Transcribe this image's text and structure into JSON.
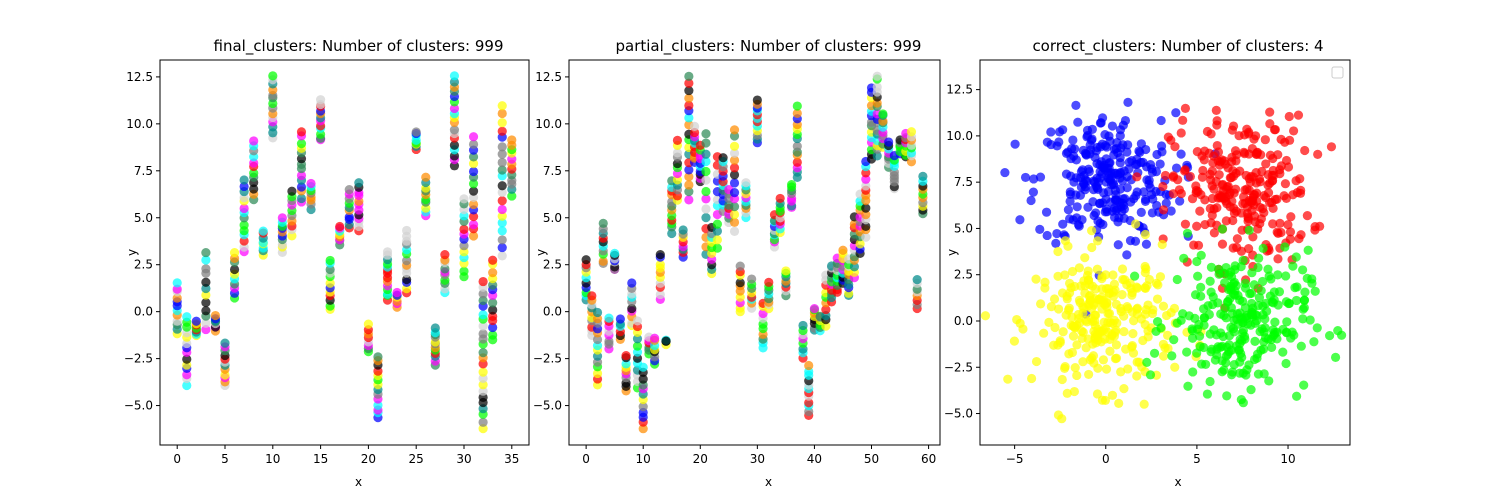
{
  "figure": {
    "background": "#ffffff"
  },
  "chart_data": [
    {
      "type": "scatter",
      "title": "final_clusters: Number of clusters: 999",
      "xlabel": "x",
      "ylabel": "y",
      "xlim": [
        -1.8,
        36.8
      ],
      "ylim": [
        -7.1,
        13.4
      ],
      "xticks": [
        0,
        5,
        10,
        15,
        20,
        25,
        30,
        35
      ],
      "yticks": [
        -5.0,
        -2.5,
        0.0,
        2.5,
        5.0,
        7.5,
        10.0,
        12.5
      ],
      "ytick_labels": [
        "−5.0",
        "−2.5",
        "0.0",
        "2.5",
        "5.0",
        "7.5",
        "10.0",
        "12.5"
      ],
      "grid": false,
      "palette": [
        "#ff0000",
        "#00ff00",
        "#0000ff",
        "#ffff00",
        "#00ffff",
        "#ff00ff",
        "#000000",
        "#808080",
        "#2e8b57",
        "#ff8c00",
        "#d3d3d3",
        "#008b8b"
      ],
      "point_columns": [
        {
          "x": 0,
          "y_min": -1.2,
          "y_max": 1.5,
          "n": 12
        },
        {
          "x": 1,
          "y_min": -3.9,
          "y_max": -0.3,
          "n": 14
        },
        {
          "x": 2,
          "y_min": -1.3,
          "y_max": -0.5,
          "n": 8
        },
        {
          "x": 3,
          "y_min": -1.0,
          "y_max": 3.1,
          "n": 12
        },
        {
          "x": 4,
          "y_min": -1.0,
          "y_max": -0.2,
          "n": 8
        },
        {
          "x": 5,
          "y_min": -3.9,
          "y_max": -1.7,
          "n": 12
        },
        {
          "x": 6,
          "y_min": 0.7,
          "y_max": 3.1,
          "n": 10
        },
        {
          "x": 7,
          "y_min": 3.2,
          "y_max": 7.0,
          "n": 14
        },
        {
          "x": 8,
          "y_min": 6.0,
          "y_max": 9.1,
          "n": 12
        },
        {
          "x": 9,
          "y_min": 3.0,
          "y_max": 4.3,
          "n": 8
        },
        {
          "x": 10,
          "y_min": 9.3,
          "y_max": 12.6,
          "n": 14
        },
        {
          "x": 11,
          "y_min": 3.2,
          "y_max": 5.0,
          "n": 10
        },
        {
          "x": 12,
          "y_min": 4.1,
          "y_max": 6.4,
          "n": 10
        },
        {
          "x": 13,
          "y_min": 5.8,
          "y_max": 9.6,
          "n": 14
        },
        {
          "x": 14,
          "y_min": 5.5,
          "y_max": 6.8,
          "n": 8
        },
        {
          "x": 15,
          "y_min": 9.1,
          "y_max": 11.3,
          "n": 12
        },
        {
          "x": 16,
          "y_min": 0.1,
          "y_max": 2.8,
          "n": 12
        },
        {
          "x": 17,
          "y_min": 3.6,
          "y_max": 4.6,
          "n": 8
        },
        {
          "x": 18,
          "y_min": 4.4,
          "y_max": 6.5,
          "n": 10
        },
        {
          "x": 19,
          "y_min": 4.3,
          "y_max": 6.8,
          "n": 12
        },
        {
          "x": 20,
          "y_min": -2.2,
          "y_max": -0.7,
          "n": 8
        },
        {
          "x": 21,
          "y_min": -5.7,
          "y_max": -2.4,
          "n": 14
        },
        {
          "x": 22,
          "y_min": 0.6,
          "y_max": 3.2,
          "n": 14
        },
        {
          "x": 23,
          "y_min": 0.3,
          "y_max": 1.0,
          "n": 6
        },
        {
          "x": 24,
          "y_min": 1.0,
          "y_max": 4.3,
          "n": 14
        },
        {
          "x": 25,
          "y_min": 8.6,
          "y_max": 9.6,
          "n": 8
        },
        {
          "x": 26,
          "y_min": 5.1,
          "y_max": 7.1,
          "n": 10
        },
        {
          "x": 27,
          "y_min": -2.8,
          "y_max": -0.9,
          "n": 12
        },
        {
          "x": 28,
          "y_min": 1.0,
          "y_max": 3.0,
          "n": 10
        },
        {
          "x": 29,
          "y_min": 7.8,
          "y_max": 12.5,
          "n": 18
        },
        {
          "x": 30,
          "y_min": 1.9,
          "y_max": 6.0,
          "n": 14
        },
        {
          "x": 31,
          "y_min": 4.0,
          "y_max": 9.3,
          "n": 16
        },
        {
          "x": 32,
          "y_min": -6.2,
          "y_max": 1.6,
          "n": 24
        },
        {
          "x": 33,
          "y_min": -1.5,
          "y_max": 2.8,
          "n": 14
        },
        {
          "x": 34,
          "y_min": 3.0,
          "y_max": 10.9,
          "n": 20
        },
        {
          "x": 35,
          "y_min": 6.2,
          "y_max": 9.2,
          "n": 12
        }
      ]
    },
    {
      "type": "scatter",
      "title": "partial_clusters: Number of clusters: 999",
      "xlabel": "x",
      "ylabel": "y",
      "xlim": [
        -3,
        62
      ],
      "ylim": [
        -7.1,
        13.4
      ],
      "xticks": [
        0,
        10,
        20,
        30,
        40,
        50,
        60
      ],
      "yticks": [
        -5.0,
        -2.5,
        0.0,
        2.5,
        5.0,
        7.5,
        10.0,
        12.5
      ],
      "ytick_labels": [
        "−5.0",
        "−2.5",
        "0.0",
        "2.5",
        "5.0",
        "7.5",
        "10.0",
        "12.5"
      ],
      "grid": false,
      "palette": [
        "#ff0000",
        "#00ff00",
        "#0000ff",
        "#ffff00",
        "#00ffff",
        "#ff00ff",
        "#000000",
        "#808080",
        "#2e8b57",
        "#ff8c00",
        "#d3d3d3",
        "#008b8b"
      ],
      "point_columns": [
        {
          "x": 0,
          "y_min": 0.6,
          "y_max": 2.8,
          "n": 10
        },
        {
          "x": 1,
          "y_min": -1.2,
          "y_max": 0.8,
          "n": 10
        },
        {
          "x": 2,
          "y_min": -3.9,
          "y_max": 0.0,
          "n": 14
        },
        {
          "x": 3,
          "y_min": 2.5,
          "y_max": 4.7,
          "n": 10
        },
        {
          "x": 4,
          "y_min": -2.0,
          "y_max": -0.3,
          "n": 8
        },
        {
          "x": 5,
          "y_min": 2.2,
          "y_max": 3.1,
          "n": 8
        },
        {
          "x": 6,
          "y_min": -1.5,
          "y_max": -0.4,
          "n": 6
        },
        {
          "x": 7,
          "y_min": -4.2,
          "y_max": -2.3,
          "n": 10
        },
        {
          "x": 8,
          "y_min": -0.8,
          "y_max": 1.5,
          "n": 10
        },
        {
          "x": 9,
          "y_min": -4.0,
          "y_max": -0.5,
          "n": 12
        },
        {
          "x": 10,
          "y_min": -6.2,
          "y_max": -3.0,
          "n": 12
        },
        {
          "x": 11,
          "y_min": -2.2,
          "y_max": -1.4,
          "n": 6
        },
        {
          "x": 12,
          "y_min": -2.8,
          "y_max": -1.4,
          "n": 8
        },
        {
          "x": 13,
          "y_min": 0.7,
          "y_max": 3.1,
          "n": 10
        },
        {
          "x": 14,
          "y_min": -1.7,
          "y_max": -1.5,
          "n": 4
        },
        {
          "x": 15,
          "y_min": 4.2,
          "y_max": 6.9,
          "n": 12
        },
        {
          "x": 16,
          "y_min": 5.9,
          "y_max": 9.1,
          "n": 12
        },
        {
          "x": 17,
          "y_min": 2.9,
          "y_max": 4.3,
          "n": 8
        },
        {
          "x": 18,
          "y_min": 6.0,
          "y_max": 12.6,
          "n": 18
        },
        {
          "x": 19,
          "y_min": 7.9,
          "y_max": 9.8,
          "n": 10
        },
        {
          "x": 20,
          "y_min": 6.9,
          "y_max": 8.8,
          "n": 10
        },
        {
          "x": 21,
          "y_min": 3.0,
          "y_max": 9.4,
          "n": 14
        },
        {
          "x": 22,
          "y_min": 2.0,
          "y_max": 4.5,
          "n": 10
        },
        {
          "x": 23,
          "y_min": 3.4,
          "y_max": 8.2,
          "n": 12
        },
        {
          "x": 24,
          "y_min": 5.4,
          "y_max": 8.2,
          "n": 12
        },
        {
          "x": 25,
          "y_min": 4.7,
          "y_max": 6.5,
          "n": 8
        },
        {
          "x": 26,
          "y_min": 4.3,
          "y_max": 9.7,
          "n": 14
        },
        {
          "x": 27,
          "y_min": 0.0,
          "y_max": 2.4,
          "n": 10
        },
        {
          "x": 28,
          "y_min": 5.0,
          "y_max": 6.9,
          "n": 10
        },
        {
          "x": 29,
          "y_min": 0.2,
          "y_max": 1.7,
          "n": 8
        },
        {
          "x": 30,
          "y_min": 9.0,
          "y_max": 11.3,
          "n": 12
        },
        {
          "x": 31,
          "y_min": -2.0,
          "y_max": 0.5,
          "n": 10
        },
        {
          "x": 32,
          "y_min": 0.1,
          "y_max": 1.6,
          "n": 8
        },
        {
          "x": 33,
          "y_min": 3.5,
          "y_max": 5.1,
          "n": 10
        },
        {
          "x": 34,
          "y_min": 4.2,
          "y_max": 6.0,
          "n": 10
        },
        {
          "x": 35,
          "y_min": 0.9,
          "y_max": 2.2,
          "n": 8
        },
        {
          "x": 36,
          "y_min": 5.5,
          "y_max": 6.8,
          "n": 8
        },
        {
          "x": 37,
          "y_min": 7.1,
          "y_max": 10.9,
          "n": 14
        },
        {
          "x": 38,
          "y_min": -2.5,
          "y_max": -0.7,
          "n": 8
        },
        {
          "x": 39,
          "y_min": -5.5,
          "y_max": -2.9,
          "n": 12
        },
        {
          "x": 40,
          "y_min": -1.0,
          "y_max": 0.2,
          "n": 8
        },
        {
          "x": 41,
          "y_min": -1.0,
          "y_max": -0.2,
          "n": 6
        },
        {
          "x": 42,
          "y_min": -0.8,
          "y_max": 2.0,
          "n": 10
        },
        {
          "x": 43,
          "y_min": 0.5,
          "y_max": 2.5,
          "n": 10
        },
        {
          "x": 44,
          "y_min": 1.0,
          "y_max": 2.8,
          "n": 10
        },
        {
          "x": 45,
          "y_min": 1.5,
          "y_max": 3.3,
          "n": 10
        },
        {
          "x": 46,
          "y_min": 0.8,
          "y_max": 2.8,
          "n": 10
        },
        {
          "x": 47,
          "y_min": 1.8,
          "y_max": 5.0,
          "n": 12
        },
        {
          "x": 48,
          "y_min": 3.1,
          "y_max": 6.2,
          "n": 12
        },
        {
          "x": 49,
          "y_min": 4.0,
          "y_max": 8.0,
          "n": 14
        },
        {
          "x": 50,
          "y_min": 8.1,
          "y_max": 11.9,
          "n": 14
        },
        {
          "x": 51,
          "y_min": 8.3,
          "y_max": 12.6,
          "n": 16
        },
        {
          "x": 52,
          "y_min": 8.8,
          "y_max": 10.6,
          "n": 10
        },
        {
          "x": 53,
          "y_min": 7.7,
          "y_max": 9.0,
          "n": 8
        },
        {
          "x": 54,
          "y_min": 6.5,
          "y_max": 8.3,
          "n": 10
        },
        {
          "x": 55,
          "y_min": 8.4,
          "y_max": 9.2,
          "n": 6
        },
        {
          "x": 56,
          "y_min": 8.2,
          "y_max": 9.5,
          "n": 8
        },
        {
          "x": 57,
          "y_min": 8.0,
          "y_max": 9.6,
          "n": 8
        },
        {
          "x": 58,
          "y_min": 0.1,
          "y_max": 1.7,
          "n": 8
        },
        {
          "x": 59,
          "y_min": 5.2,
          "y_max": 7.2,
          "n": 10
        }
      ]
    },
    {
      "type": "scatter",
      "title": "correct_clusters: Number of clusters: 4",
      "xlabel": "x",
      "ylabel": "y",
      "xlim": [
        -6.9,
        13.4
      ],
      "ylim": [
        -6.7,
        14.1
      ],
      "xticks": [
        -5,
        0,
        5,
        10
      ],
      "xtick_labels": [
        "−5",
        "0",
        "5",
        "10"
      ],
      "yticks": [
        -5.0,
        -2.5,
        0.0,
        2.5,
        5.0,
        7.5,
        10.0,
        12.5
      ],
      "ytick_labels": [
        "−5.0",
        "−2.5",
        "0.0",
        "2.5",
        "5.0",
        "7.5",
        "10.0",
        "12.5"
      ],
      "grid": false,
      "legend": "top-right",
      "alpha": 0.7,
      "clusters": [
        {
          "color": "#0000ff",
          "center": [
            0.0,
            7.6
          ],
          "spread": [
            1.9,
            1.8
          ],
          "n": 260
        },
        {
          "color": "#ff0000",
          "center": [
            7.4,
            7.0
          ],
          "spread": [
            1.9,
            2.0
          ],
          "n": 260
        },
        {
          "color": "#ffff00",
          "center": [
            0.0,
            0.0
          ],
          "spread": [
            1.9,
            1.8
          ],
          "n": 260
        },
        {
          "color": "#00ff00",
          "center": [
            7.3,
            0.0
          ],
          "spread": [
            1.9,
            1.9
          ],
          "n": 260
        }
      ]
    }
  ]
}
